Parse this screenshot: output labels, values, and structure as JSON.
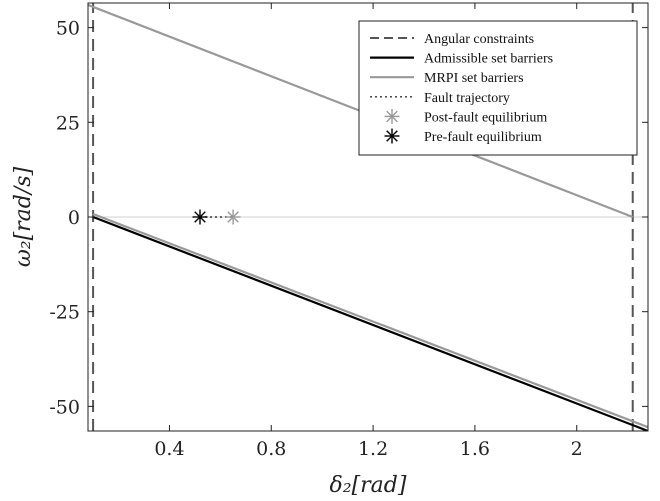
{
  "chart_data": {
    "type": "line",
    "xlabel": "δ₂[rad]",
    "ylabel": "ω₂[rad/s]",
    "xlim": [
      0.08,
      2.28
    ],
    "ylim": [
      -56.5,
      56.5
    ],
    "xticks": [
      0.4,
      0.8,
      1.2,
      1.6,
      2.0
    ],
    "xtick_labels": [
      "0.4",
      "0.8",
      "1.2",
      "1.6",
      "2"
    ],
    "yticks": [
      50,
      25,
      0,
      -25,
      -50
    ],
    "ytick_labels": [
      "50",
      "25",
      "0",
      "-25",
      "-50"
    ],
    "grid": false,
    "legend_position": "top-right",
    "zero_line": {
      "y": 0,
      "color": "#d0d0d0"
    },
    "series": [
      {
        "name": "Angular constraints",
        "style": "dashed",
        "color": "#555555",
        "segments": [
          {
            "x": [
              0.1,
              0.1
            ],
            "y": [
              -56.5,
              56.5
            ]
          },
          {
            "x": [
              2.22,
              2.22
            ],
            "y": [
              -56.5,
              56.5
            ]
          }
        ]
      },
      {
        "name": "Admissible set barriers",
        "style": "solid",
        "color": "#000000",
        "segments": [
          {
            "x": [
              0.1,
              2.28
            ],
            "y": [
              0,
              -56.5
            ]
          }
        ]
      },
      {
        "name": "MRPI set barriers",
        "style": "solid",
        "color": "#999999",
        "segments": [
          {
            "x": [
              0.08,
              2.22
            ],
            "y": [
              56,
              0
            ]
          },
          {
            "x": [
              0.1,
              2.28
            ],
            "y": [
              0.8,
              -55.5
            ]
          }
        ]
      },
      {
        "name": "Fault trajectory",
        "style": "dotted",
        "color": "#333333",
        "segments": [
          {
            "x": [
              0.52,
              0.65
            ],
            "y": [
              0,
              0
            ]
          }
        ]
      },
      {
        "name": "Post-fault equilibrium",
        "style": "marker",
        "color": "#999999",
        "points": [
          {
            "x": 0.65,
            "y": 0
          }
        ]
      },
      {
        "name": "Pre-fault equilibrium",
        "style": "marker",
        "color": "#000000",
        "points": [
          {
            "x": 0.52,
            "y": 0
          }
        ]
      }
    ]
  }
}
